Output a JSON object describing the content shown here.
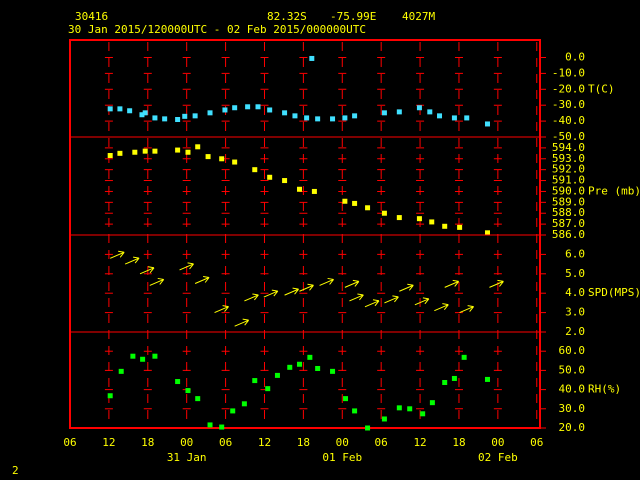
{
  "header": {
    "station": "30416",
    "lat": "82.32S",
    "lon": "-75.99E",
    "elev": "4027M",
    "period": "30 Jan 2015/120000UTC - 02 Feb 2015/000000UTC"
  },
  "footer": "2",
  "chart_data": [
    {
      "type": "scatter",
      "label": "T(C)",
      "color": "#40e0ff",
      "ylim": [
        -50,
        11
      ],
      "yticks": [
        {
          "value": 0,
          "label": "0.0"
        },
        {
          "value": -10,
          "label": "-10.0"
        },
        {
          "value": -20,
          "label": "-20.0"
        },
        {
          "value": -30,
          "label": "-30.0"
        },
        {
          "value": -40,
          "label": "-40.0"
        },
        {
          "value": -50,
          "label": "-50.0"
        }
      ],
      "x": [
        6.2,
        7.7,
        9.2,
        11.1,
        11.6,
        13.1,
        14.6,
        16.6,
        17.7,
        19.3,
        21.6,
        23.9,
        25.4,
        27.4,
        29,
        30.8,
        33.1,
        34.7,
        36.5,
        37.3,
        38.2,
        40.5,
        42.4,
        43.9,
        48.5,
        50.8,
        53.9,
        55.5,
        57,
        59.3,
        61.2,
        64.4
      ],
      "values": [
        -32.3,
        -32.3,
        -33.5,
        -36,
        -34.8,
        -38,
        -38.6,
        -39,
        -37,
        -36.7,
        -34.8,
        -33,
        -31.6,
        -31,
        -31,
        -33,
        -34.8,
        -36.7,
        -38,
        -0.6,
        -38.6,
        -38.6,
        -38,
        -36.7,
        -34.8,
        -34.2,
        -31.6,
        -34.2,
        -36.7,
        -38,
        -38,
        -41.8
      ]
    },
    {
      "type": "scatter",
      "label": "Pre (mb)",
      "color": "#ffff00",
      "ylim": [
        586,
        595
      ],
      "yticks": [
        {
          "value": 594,
          "label": "594.0"
        },
        {
          "value": 593,
          "label": "593.0"
        },
        {
          "value": 592,
          "label": "592.0"
        },
        {
          "value": 591,
          "label": "591.0"
        },
        {
          "value": 590,
          "label": "590.0"
        },
        {
          "value": 589,
          "label": "589.0"
        },
        {
          "value": 588,
          "label": "588.0"
        },
        {
          "value": 587,
          "label": "587.0"
        },
        {
          "value": 586,
          "label": "586.0"
        }
      ],
      "x": [
        6.2,
        7.7,
        10,
        11.6,
        13.1,
        16.6,
        18.2,
        19.7,
        21.3,
        23.4,
        25.4,
        28.5,
        30.8,
        33.1,
        35.4,
        37.7,
        42.4,
        43.9,
        45.9,
        48.5,
        50.8,
        53.9,
        55.8,
        57.8,
        60.1,
        64.4
      ],
      "values": [
        593.3,
        593.5,
        593.6,
        593.7,
        593.7,
        593.8,
        593.6,
        594.1,
        593.2,
        593,
        592.7,
        592,
        591.3,
        591,
        590.2,
        590,
        589.1,
        588.9,
        588.5,
        588,
        587.6,
        587.5,
        587.2,
        586.8,
        586.7,
        586.2
      ]
    },
    {
      "type": "quiver",
      "label": "SPD(MPS)",
      "color": "#ffff00",
      "ylim": [
        2,
        7
      ],
      "yticks": [
        {
          "value": 6,
          "label": "6.0"
        },
        {
          "value": 5,
          "label": "5.0"
        },
        {
          "value": 4,
          "label": "4.0"
        },
        {
          "value": 3,
          "label": "3.0"
        },
        {
          "value": 2,
          "label": "2.0"
        }
      ],
      "x": [
        6.2,
        8.5,
        10.8,
        12.3,
        16.9,
        19.3,
        22.3,
        25.4,
        26.9,
        29.9,
        33.1,
        35.4,
        38.5,
        42.4,
        43.1,
        45.5,
        48.5,
        50.8,
        53.2,
        56.2,
        57.8,
        60.1,
        64.7
      ],
      "values": [
        5.8,
        5.5,
        5,
        4.4,
        5.2,
        4.5,
        3,
        2.3,
        3.6,
        3.8,
        3.9,
        4.1,
        4.4,
        4.3,
        3.6,
        3.3,
        3.5,
        4.1,
        3.4,
        3.1,
        4.3,
        3,
        4.3
      ]
    },
    {
      "type": "scatter",
      "label": "RH(%)",
      "color": "#00ff00",
      "ylim": [
        20,
        70
      ],
      "yticks": [
        {
          "value": 60,
          "label": "60.0"
        },
        {
          "value": 50,
          "label": "50.0"
        },
        {
          "value": 40,
          "label": "40.0"
        },
        {
          "value": 30,
          "label": "30.0"
        },
        {
          "value": 20,
          "label": "20.0"
        }
      ],
      "x": [
        6.2,
        7.9,
        9.7,
        11.2,
        13.1,
        16.6,
        18.2,
        19.7,
        21.6,
        23.4,
        25.1,
        26.9,
        28.5,
        30.5,
        32,
        33.9,
        35.4,
        37,
        38.2,
        40.5,
        42.5,
        43.9,
        45.9,
        48.5,
        50.8,
        52.4,
        54.4,
        55.9,
        57.8,
        59.3,
        60.8,
        64.4
      ],
      "values": [
        36.8,
        49.5,
        57.4,
        55.8,
        57.4,
        44.2,
        39.5,
        35.3,
        21.6,
        20.5,
        28.9,
        32.6,
        44.7,
        40.5,
        47.4,
        51.6,
        53.2,
        56.8,
        51,
        49.5,
        35.3,
        28.9,
        20,
        24.7,
        30.5,
        30,
        27.4,
        33.2,
        43.7,
        45.8,
        56.8,
        45.3
      ],
      "xlim": [
        0,
        72.5
      ],
      "xticks": [
        {
          "value": 0,
          "label": "06"
        },
        {
          "value": 6,
          "label": "12"
        },
        {
          "value": 12,
          "label": "18"
        },
        {
          "value": 18,
          "label": "00"
        },
        {
          "value": 24,
          "label": "06"
        },
        {
          "value": 30,
          "label": "12"
        },
        {
          "value": 36,
          "label": "18"
        },
        {
          "value": 42,
          "label": "00"
        },
        {
          "value": 48,
          "label": "06"
        },
        {
          "value": 54,
          "label": "12"
        },
        {
          "value": 60,
          "label": "18"
        },
        {
          "value": 66,
          "label": "00"
        },
        {
          "value": 72,
          "label": "06"
        }
      ],
      "x_dates": [
        {
          "value": 18,
          "label": "31 Jan"
        },
        {
          "value": 42,
          "label": "01 Feb"
        },
        {
          "value": 66,
          "label": "02 Feb"
        }
      ]
    }
  ]
}
